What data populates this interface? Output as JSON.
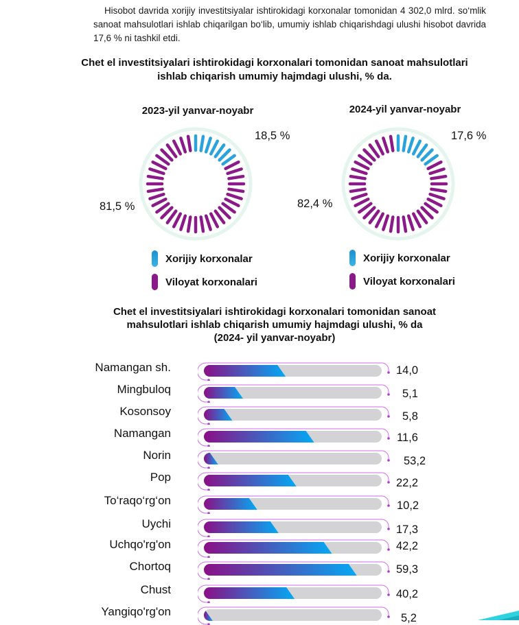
{
  "paragraph": "Hisobot davrida xorijiy investitsiyalar ishtirokidagi korxonalar tomonidan 4 302,0 mlrd. so‘mlik sanoat mahsulotlari ishlab chiqarilgan bo‘lib, umumiy ishlab chiqarishdagi ulushi hisobot davrida 17,6 % ni tashkil etdi.",
  "colors": {
    "foreign": "#2aa3dc",
    "regional": "#8b1a89",
    "ring": "#e4f5ee",
    "bar_track": "#d3d3d6",
    "bar_grad_start": "#8b0f86",
    "bar_grad_end": "#03a9f4",
    "bar_outline": "#cf6ee6"
  },
  "chart_data": [
    {
      "type": "pie",
      "title": "Chet el investitsiyalari ishtirokidagi korxonalari tomonidan sanoat mahsulotlari ishlab chiqarish umumiy hajmdagi ulushi, % da.",
      "subtitle": "2023-yil yanvar-noyabr",
      "categories": [
        "Xorijiy korxonalar",
        "Viloyat korxonalari"
      ],
      "values": [
        18.5,
        81.5
      ],
      "labels": [
        "18,5 %",
        "81,5 %"
      ],
      "legend": [
        "Xorijiy korxonalar",
        "Viloyat korxonalari"
      ],
      "legend_position": "bottom"
    },
    {
      "type": "pie",
      "title": "Chet el investitsiyalari ishtirokidagi korxonalari tomonidan sanoat mahsulotlari ishlab chiqarish umumiy hajmdagi ulushi, % da.",
      "subtitle": "2024-yil yanvar-noyabr",
      "categories": [
        "Xorijiy korxonalar",
        "Viloyat korxonalari"
      ],
      "values": [
        17.6,
        82.4
      ],
      "labels": [
        "17,6 %",
        "82,4 %"
      ],
      "legend": [
        "Xorijiy korxonalar",
        "Viloyat korxonalari"
      ],
      "legend_position": "bottom"
    },
    {
      "type": "bar",
      "orientation": "horizontal",
      "title": "Chet el investitsiyalari ishtirokidagi korxonalari tomonidan sanoat mahsulotlari ishlab chiqarish umumiy hajmdagi ulushi, % da (2024- yil yanvar-noyabr)",
      "categories": [
        "Namangan sh.",
        "Mingbuloq",
        "Kosonsoy",
        "Namangan",
        "Norin",
        "Pop",
        "To‘raqo‘rg‘on",
        "Uychi",
        "Uchqo'rg'on",
        "Chortoq",
        "Chust",
        "Yangiqo'rg'on"
      ],
      "values": [
        14.0,
        5.1,
        5.8,
        11.6,
        53.2,
        22.2,
        10.2,
        17.3,
        42.2,
        59.3,
        40.2,
        5.2
      ],
      "value_labels": [
        "14,0",
        "5,1",
        "5,8",
        "11,6",
        "53,2",
        "22,2",
        "10,2",
        "17,3",
        "42,2",
        "59,3",
        "40,2",
        "5,2"
      ],
      "bar_fill_fraction": [
        0.46,
        0.22,
        0.16,
        0.62,
        0.08,
        0.52,
        0.3,
        0.42,
        0.72,
        0.86,
        0.51,
        0.05
      ],
      "xlabel": "",
      "ylabel": "",
      "xlim": [
        0,
        100
      ],
      "grid": false
    }
  ],
  "texts": {
    "donut_titles": [
      "2023-yil yanvar-noyabr",
      "2024-yil yanvar-noyabr"
    ],
    "heading1": "Chet el investitsiyalari ishtirokidagi korxonalari tomonidan sanoat mahsulotlari ishlab chiqarish umumiy hajmdagi ulushi, % da.",
    "heading2_line1": "Chet el investitsiyalari ishtirokidagi korxonalari tomonidan sanoat",
    "heading2_line2": "mahsulotlari ishlab chiqarish umumiy hajmdagi ulushi, % da",
    "heading2_line3": "(2024- yil yanvar-noyabr)"
  }
}
